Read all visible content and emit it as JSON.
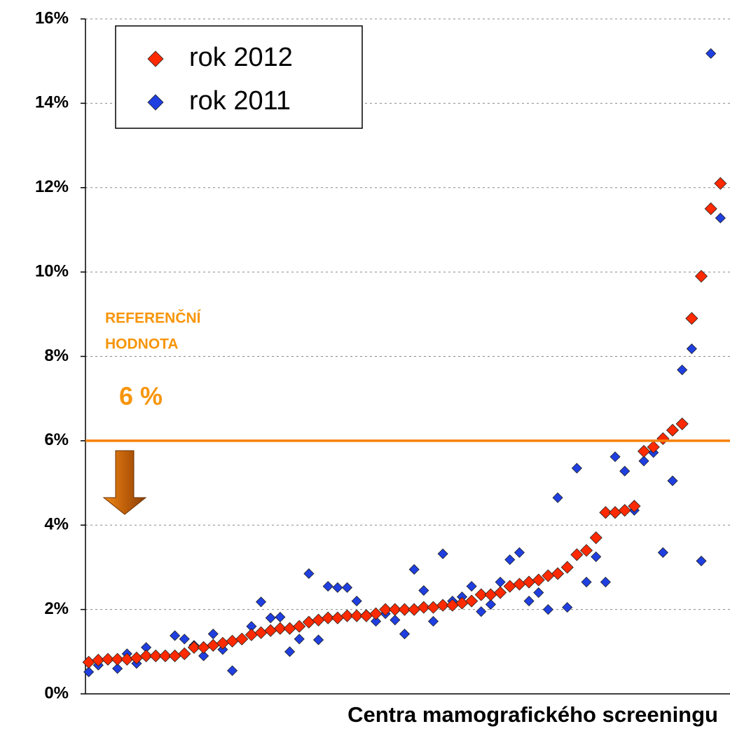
{
  "chart_data": {
    "type": "scatter",
    "x_label": "Centra mamografického screeningu",
    "x": [
      1,
      2,
      3,
      4,
      5,
      6,
      7,
      8,
      9,
      10,
      11,
      12,
      13,
      14,
      15,
      16,
      17,
      18,
      19,
      20,
      21,
      22,
      23,
      24,
      25,
      26,
      27,
      28,
      29,
      30,
      31,
      32,
      33,
      34,
      35,
      36,
      37,
      38,
      39,
      40,
      41,
      42,
      43,
      44,
      45,
      46,
      47,
      48,
      49,
      50,
      51,
      52,
      53,
      54,
      55,
      56,
      57,
      58,
      59,
      60,
      61,
      62,
      63,
      64,
      65,
      66,
      67
    ],
    "xlim": [
      0,
      68
    ],
    "ylim": [
      0,
      16
    ],
    "yticks": [
      {
        "value": 0,
        "label": "0%"
      },
      {
        "value": 2,
        "label": "2%"
      },
      {
        "value": 4,
        "label": "4%"
      },
      {
        "value": 6,
        "label": "6%"
      },
      {
        "value": 8,
        "label": "8%"
      },
      {
        "value": 10,
        "label": "10%"
      },
      {
        "value": 12,
        "label": "12%"
      },
      {
        "value": 14,
        "label": "14%"
      },
      {
        "value": 16,
        "label": "16%"
      }
    ],
    "grid": true,
    "legend": "upper left",
    "reference_line": {
      "value": 6,
      "color": "#f7800a"
    },
    "annotations": [
      "REFERENČNÍ",
      "HODNOTA",
      "6 %"
    ],
    "series": [
      {
        "name": "rok 2012",
        "color": "#ff2a00",
        "values": [
          0.75,
          0.8,
          0.82,
          0.82,
          0.82,
          0.85,
          0.9,
          0.9,
          0.9,
          0.9,
          0.95,
          1.1,
          1.1,
          1.15,
          1.2,
          1.25,
          1.3,
          1.4,
          1.45,
          1.5,
          1.55,
          1.55,
          1.6,
          1.7,
          1.75,
          1.8,
          1.8,
          1.85,
          1.85,
          1.85,
          1.9,
          2.0,
          2.0,
          2.0,
          2.0,
          2.05,
          2.05,
          2.1,
          2.1,
          2.15,
          2.2,
          2.35,
          2.35,
          2.4,
          2.55,
          2.6,
          2.65,
          2.7,
          2.8,
          2.85,
          3.0,
          3.3,
          3.4,
          3.7,
          4.3,
          4.3,
          4.35,
          4.45,
          5.75,
          5.85,
          6.05,
          6.25,
          6.4,
          8.9,
          9.9,
          11.5,
          12.1
        ]
      },
      {
        "name": "rok 2011",
        "color": "#1f3fe0",
        "values": [
          0.52,
          0.68,
          0.8,
          0.6,
          0.95,
          0.72,
          1.1,
          0.88,
          0.88,
          1.38,
          1.3,
          1.15,
          0.9,
          1.42,
          1.05,
          0.55,
          1.3,
          1.6,
          2.18,
          1.8,
          1.82,
          1.0,
          1.3,
          2.85,
          1.28,
          2.55,
          2.52,
          2.52,
          2.2,
          1.88,
          1.72,
          1.9,
          1.75,
          1.42,
          2.95,
          2.45,
          1.72,
          3.32,
          2.2,
          2.3,
          2.55,
          1.95,
          2.12,
          2.65,
          3.18,
          3.35,
          2.2,
          2.4,
          2.0,
          4.65,
          2.05,
          5.35,
          2.65,
          3.25,
          2.65,
          5.62,
          5.28,
          4.35,
          5.52,
          5.72,
          3.35,
          5.05,
          7.68,
          8.18,
          3.15,
          15.18,
          11.28
        ]
      }
    ]
  }
}
